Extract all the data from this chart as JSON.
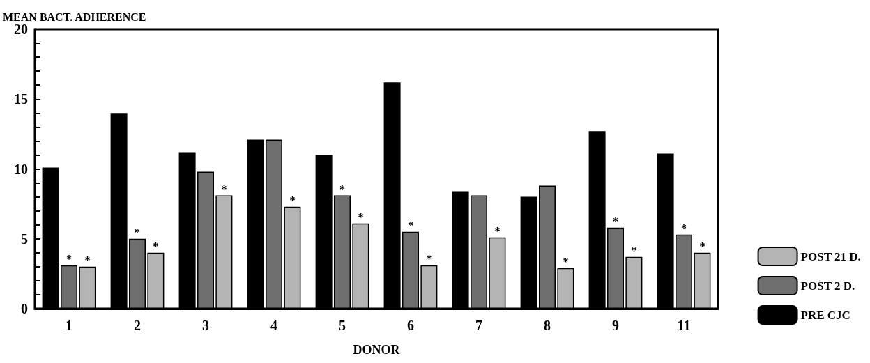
{
  "chart_data": {
    "type": "bar",
    "ylabel": "MEAN BACT. ADHERENCE",
    "xlabel": "DONOR",
    "categories": [
      "1",
      "2",
      "3",
      "4",
      "5",
      "6",
      "7",
      "8",
      "9",
      "11"
    ],
    "series": [
      {
        "name": "PRE CJC",
        "color": "#000000",
        "values": [
          10.1,
          14.0,
          11.2,
          12.1,
          11.0,
          16.2,
          8.4,
          8.0,
          12.7,
          11.1
        ],
        "value_labels": [
          null,
          null,
          null,
          null,
          null,
          null,
          null,
          null,
          null,
          null
        ]
      },
      {
        "name": "POST 2 D.",
        "color": "#6e6e6e",
        "values": [
          3.1,
          5.0,
          9.8,
          12.1,
          8.1,
          5.5,
          8.1,
          8.8,
          5.8,
          5.3
        ],
        "value_labels": [
          "*",
          "*",
          null,
          null,
          "*",
          "*",
          null,
          null,
          "*",
          "*"
        ]
      },
      {
        "name": "POST 21 D.",
        "color": "#b4b4b4",
        "values": [
          3.0,
          4.0,
          8.1,
          7.3,
          6.1,
          3.1,
          5.1,
          2.9,
          3.7,
          4.0
        ],
        "value_labels": [
          "*",
          "*",
          "*",
          "*",
          "*",
          "*",
          "*",
          "*",
          "*",
          "*"
        ]
      }
    ],
    "ylim": [
      0,
      20
    ],
    "yticks": [
      0,
      {
        "value": 1,
        "label": null
      },
      {
        "value": 2,
        "label": null
      },
      {
        "value": 3,
        "label": null
      },
      {
        "value": 4,
        "label": null
      },
      5,
      {
        "value": 6,
        "label": null
      },
      {
        "value": 7,
        "label": null
      },
      {
        "value": 8,
        "label": null
      },
      {
        "value": 9,
        "label": null
      },
      10,
      {
        "value": 11,
        "label": null
      },
      {
        "value": 12,
        "label": null
      },
      {
        "value": 13,
        "label": null
      },
      {
        "value": 14,
        "label": null
      },
      15,
      {
        "value": 16,
        "label": null
      },
      {
        "value": 17,
        "label": null
      },
      {
        "value": 18,
        "label": null
      },
      {
        "value": 19,
        "label": null
      },
      20
    ],
    "grid": false,
    "legend": "right"
  }
}
